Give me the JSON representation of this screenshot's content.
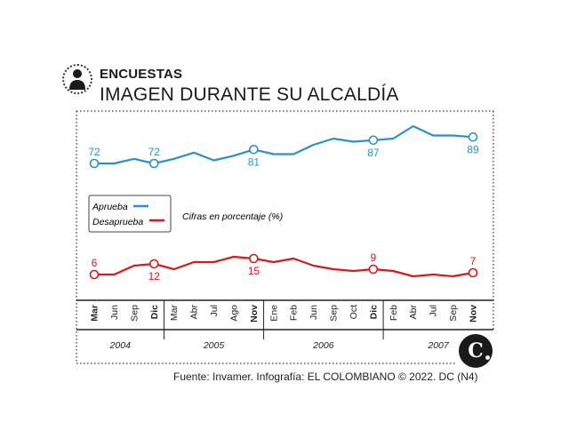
{
  "header": {
    "section": "ENCUESTAS",
    "title": "IMAGEN DURANTE SU ALCALDÍA"
  },
  "legend": {
    "approve": "Aprueba",
    "disapprove": "Desaprueba",
    "note": "Cifras en porcentaje (%)"
  },
  "footer": {
    "source": "Fuente: Invamer. Infografía: EL COLOMBIANO © 2022. DC (N4)",
    "brand": "C"
  },
  "colors": {
    "approve": "#2a8fcb",
    "disapprove": "#d7191c",
    "frame": "#333333"
  },
  "icons": [
    "person-icon",
    "brand-logo"
  ],
  "chart_data": {
    "type": "line",
    "title": "IMAGEN DURANTE SU ALCALDÍA",
    "categories": [
      "Mar",
      "Jun",
      "Sep",
      "Dic",
      "Mar",
      "Abr",
      "Jul",
      "Ago",
      "Nov",
      "Ene",
      "Feb",
      "Jun",
      "Sep",
      "Oct",
      "Dic",
      "Feb",
      "Abr",
      "Jul",
      "Sep",
      "Nov"
    ],
    "bold_categories": [
      0,
      3,
      8,
      14,
      19
    ],
    "years": [
      {
        "label": "2004",
        "from": 0,
        "to": 3
      },
      {
        "label": "2005",
        "from": 4,
        "to": 8
      },
      {
        "label": "2006",
        "from": 9,
        "to": 14
      },
      {
        "label": "2007",
        "from": 15,
        "to": 19
      }
    ],
    "series": [
      {
        "name": "Aprueba",
        "values": [
          72,
          72,
          75,
          72,
          75,
          79,
          74,
          77,
          81,
          78,
          78,
          84,
          88,
          86,
          87,
          88,
          96,
          90,
          90,
          89
        ]
      },
      {
        "name": "Desaprueba",
        "values": [
          6,
          6,
          11,
          12,
          9,
          13,
          13,
          16,
          15,
          13,
          15,
          11,
          9,
          8,
          9,
          8,
          5,
          6,
          5,
          7
        ]
      }
    ],
    "labeled_points": {
      "Aprueba": [
        {
          "index": 0,
          "text": "72"
        },
        {
          "index": 3,
          "text": "72"
        },
        {
          "index": 8,
          "text": "81"
        },
        {
          "index": 14,
          "text": "87"
        },
        {
          "index": 19,
          "text": "89"
        }
      ],
      "Desaprueba": [
        {
          "index": 0,
          "text": "6"
        },
        {
          "index": 3,
          "text": "12"
        },
        {
          "index": 8,
          "text": "15"
        },
        {
          "index": 14,
          "text": "9"
        },
        {
          "index": 19,
          "text": "7"
        }
      ]
    },
    "ylabel": "Cifras en porcentaje (%)",
    "xlabel": ""
  }
}
